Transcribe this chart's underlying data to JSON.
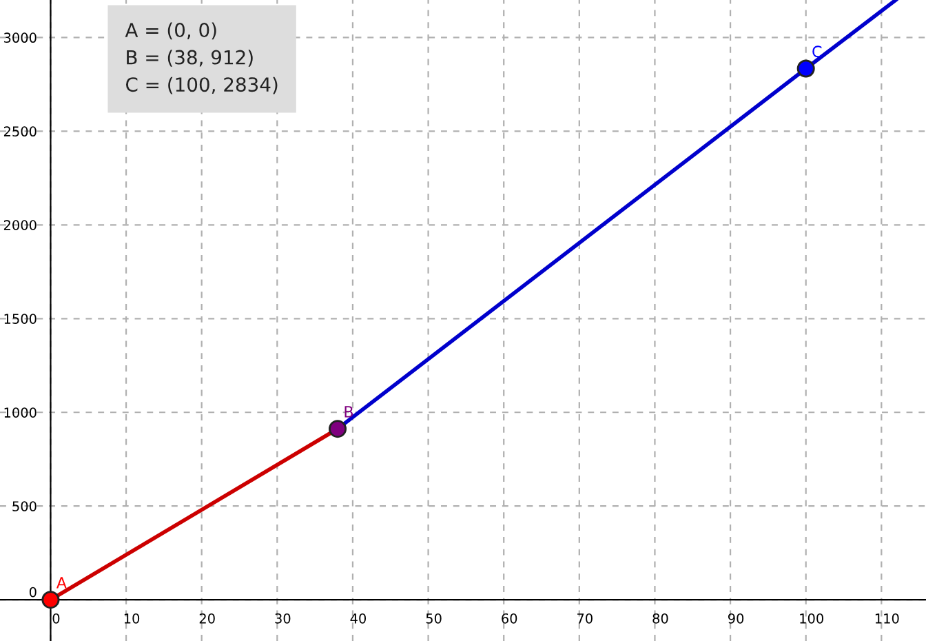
{
  "chart_data": {
    "type": "line",
    "series": [
      {
        "color": "#cc0000",
        "x": [
          0,
          38
        ],
        "values": [
          0,
          912
        ]
      },
      {
        "color": "#0000cc",
        "x": [
          38,
          100,
          111.9
        ],
        "values": [
          912,
          2834,
          3200
        ]
      },
      {
        "type": "scatter",
        "marker": "circle",
        "x": [
          0,
          38,
          100
        ],
        "values": [
          0,
          912,
          2834
        ],
        "colors": [
          "#ff0000",
          "#7f007f",
          "#0000ff"
        ]
      }
    ],
    "annotations": [
      {
        "text": "A",
        "x": 0,
        "y": 0
      },
      {
        "text": "B",
        "x": 38,
        "y": 912
      },
      {
        "text": "C",
        "x": 100,
        "y": 2834
      },
      "A = (0, 0)",
      "B = (38, 912)",
      "C = (100, 2834)"
    ],
    "xlim": [
      -6.7,
      115.9
    ],
    "ylim": [
      -220,
      3200
    ],
    "xticks": [
      0,
      10,
      20,
      30,
      40,
      50,
      60,
      70,
      80,
      90,
      100,
      110
    ],
    "yticks": [
      0,
      500,
      1000,
      1500,
      2000,
      2500,
      3000
    ],
    "grid": true,
    "line_style": "solid"
  }
}
